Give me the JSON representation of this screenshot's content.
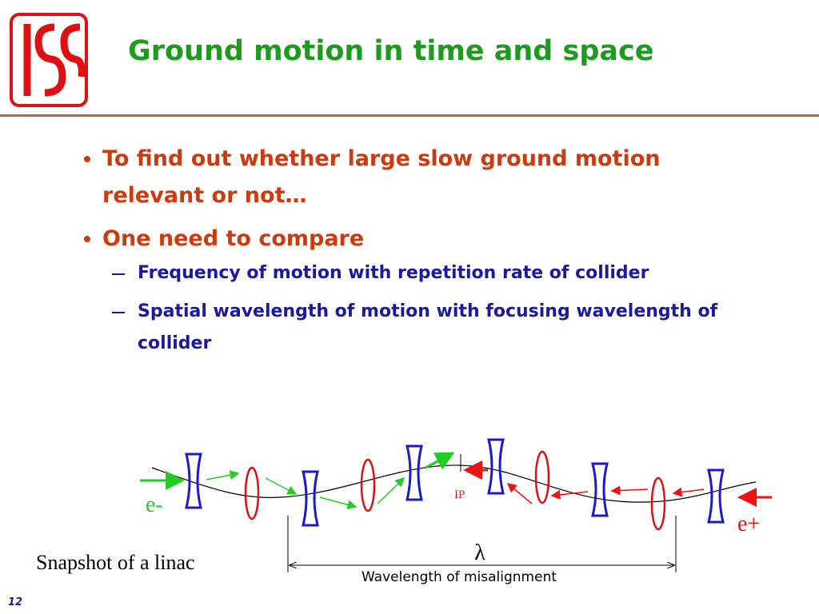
{
  "header": {
    "title": "Ground motion in time and space"
  },
  "bullets": [
    {
      "text": "To find out whether large slow ground motion relevant or not…"
    },
    {
      "text": "One need to compare",
      "subitems": [
        "Frequency of motion with repetition rate of collider",
        "Spatial wavelength of motion with focusing wavelength of collider"
      ]
    }
  ],
  "diagram": {
    "electron_label": "e-",
    "positron_label": "e+",
    "ip_label": "IP",
    "lambda_label": "λ",
    "wavelength_label": "Wavelength of misalignment"
  },
  "caption": "Snapshot of a linac",
  "page_number": "12"
}
